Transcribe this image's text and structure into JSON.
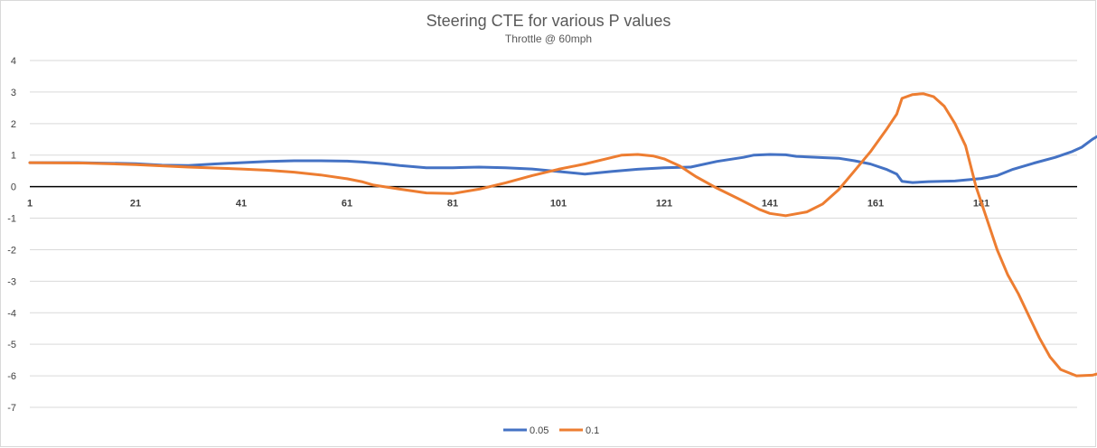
{
  "chart_data": {
    "type": "line",
    "title": "Steering CTE for various P values",
    "subtitle": "Throttle @ 60mph",
    "xlabel": "",
    "ylabel": "",
    "ylim": [
      -7,
      4
    ],
    "yticks": [
      "4",
      "3",
      "2",
      "1",
      "0",
      "-1",
      "-2",
      "-3",
      "-4",
      "-5",
      "-6",
      "-7"
    ],
    "xticks": [
      "1",
      "21",
      "41",
      "61",
      "81",
      "101",
      "121",
      "141",
      "161",
      "181"
    ],
    "xlim": [
      1,
      200
    ],
    "grid": true,
    "legend_position": "bottom",
    "series": [
      {
        "name": "0.05",
        "color": "#4472C4",
        "points": [
          [
            1,
            0.76
          ],
          [
            10,
            0.76
          ],
          [
            21,
            0.73
          ],
          [
            26,
            0.68
          ],
          [
            31,
            0.67
          ],
          [
            36,
            0.72
          ],
          [
            41,
            0.76
          ],
          [
            46,
            0.8
          ],
          [
            51,
            0.82
          ],
          [
            56,
            0.82
          ],
          [
            61,
            0.81
          ],
          [
            64,
            0.78
          ],
          [
            68,
            0.73
          ],
          [
            71,
            0.67
          ],
          [
            76,
            0.6
          ],
          [
            81,
            0.6
          ],
          [
            86,
            0.62
          ],
          [
            91,
            0.6
          ],
          [
            96,
            0.56
          ],
          [
            101,
            0.48
          ],
          [
            106,
            0.4
          ],
          [
            111,
            0.48
          ],
          [
            116,
            0.55
          ],
          [
            121,
            0.6
          ],
          [
            126,
            0.62
          ],
          [
            131,
            0.8
          ],
          [
            136,
            0.93
          ],
          [
            138,
            1.0
          ],
          [
            141,
            1.02
          ],
          [
            144,
            1.01
          ],
          [
            146,
            0.96
          ],
          [
            151,
            0.92
          ],
          [
            154,
            0.9
          ],
          [
            157,
            0.82
          ],
          [
            160,
            0.72
          ],
          [
            163,
            0.55
          ],
          [
            165,
            0.4
          ],
          [
            166,
            0.17
          ],
          [
            168,
            0.13
          ],
          [
            171,
            0.16
          ],
          [
            176,
            0.18
          ],
          [
            181,
            0.26
          ],
          [
            184,
            0.35
          ],
          [
            187,
            0.55
          ],
          [
            191,
            0.75
          ],
          [
            195,
            0.93
          ],
          [
            198,
            1.1
          ],
          [
            200,
            1.25
          ],
          [
            202,
            1.5
          ],
          [
            204,
            1.7
          ]
        ]
      },
      {
        "name": "0.1",
        "color": "#ED7D31",
        "points": [
          [
            1,
            0.76
          ],
          [
            11,
            0.75
          ],
          [
            21,
            0.7
          ],
          [
            31,
            0.62
          ],
          [
            41,
            0.56
          ],
          [
            46,
            0.52
          ],
          [
            51,
            0.46
          ],
          [
            56,
            0.37
          ],
          [
            61,
            0.25
          ],
          [
            64,
            0.15
          ],
          [
            66,
            0.05
          ],
          [
            71,
            -0.08
          ],
          [
            76,
            -0.2
          ],
          [
            81,
            -0.22
          ],
          [
            86,
            -0.08
          ],
          [
            91,
            0.12
          ],
          [
            96,
            0.35
          ],
          [
            101,
            0.55
          ],
          [
            106,
            0.72
          ],
          [
            110,
            0.88
          ],
          [
            113,
            1.0
          ],
          [
            116,
            1.02
          ],
          [
            119,
            0.97
          ],
          [
            121,
            0.88
          ],
          [
            124,
            0.65
          ],
          [
            127,
            0.32
          ],
          [
            131,
            -0.05
          ],
          [
            135,
            -0.38
          ],
          [
            139,
            -0.72
          ],
          [
            141,
            -0.85
          ],
          [
            144,
            -0.92
          ],
          [
            148,
            -0.8
          ],
          [
            151,
            -0.55
          ],
          [
            154,
            -0.1
          ],
          [
            157,
            0.5
          ],
          [
            160,
            1.1
          ],
          [
            163,
            1.8
          ],
          [
            165,
            2.3
          ],
          [
            166,
            2.8
          ],
          [
            168,
            2.92
          ],
          [
            170,
            2.95
          ],
          [
            172,
            2.85
          ],
          [
            174,
            2.55
          ],
          [
            176,
            2.0
          ],
          [
            178,
            1.3
          ],
          [
            180,
            0.0
          ],
          [
            182,
            -1.0
          ],
          [
            184,
            -2.0
          ],
          [
            186,
            -2.8
          ],
          [
            188,
            -3.4
          ],
          [
            190,
            -4.1
          ],
          [
            192,
            -4.8
          ],
          [
            194,
            -5.4
          ],
          [
            196,
            -5.8
          ],
          [
            199,
            -6.0
          ],
          [
            202,
            -5.98
          ],
          [
            205,
            -5.85
          ]
        ]
      }
    ]
  }
}
